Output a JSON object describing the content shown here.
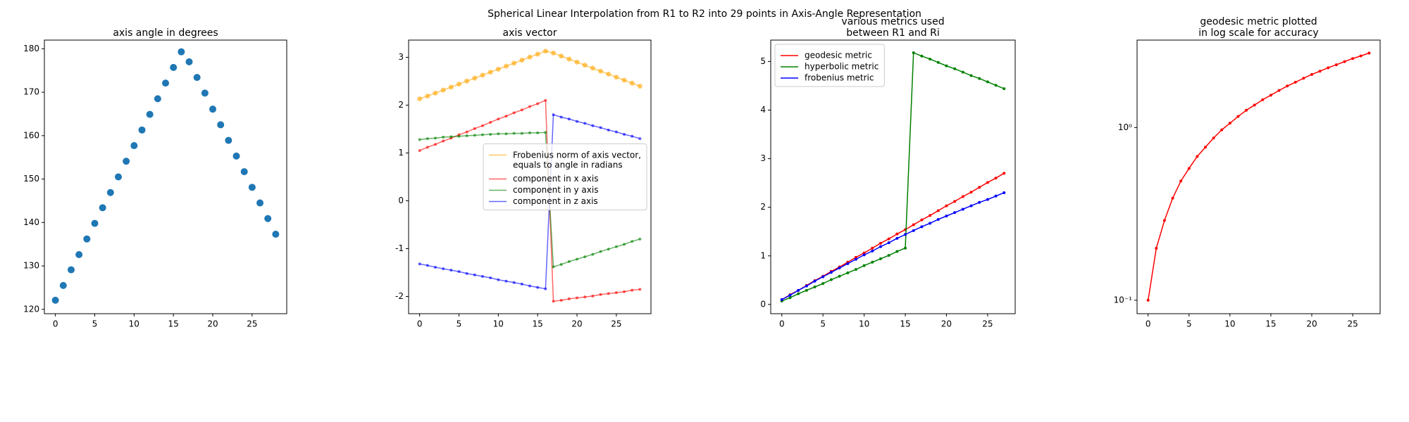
{
  "title": "Spherical Linear Interpolation from R1 to R2 into 29 points in Axis-Angle Representation",
  "chart_data": [
    {
      "type": "scatter",
      "title": "axis angle in degrees",
      "x": [
        0,
        1,
        2,
        3,
        4,
        5,
        6,
        7,
        8,
        9,
        10,
        11,
        12,
        13,
        14,
        15,
        16,
        17,
        18,
        19,
        20,
        21,
        22,
        23,
        24,
        25,
        26,
        27,
        28
      ],
      "series": [
        {
          "color": "#1f77b4",
          "markersize": 5,
          "values": [
            122.1,
            125.5,
            129.1,
            132.6,
            136.2,
            139.8,
            143.4,
            146.9,
            150.5,
            154.1,
            157.7,
            161.3,
            164.9,
            168.5,
            172.1,
            175.7,
            179.3,
            177.0,
            173.4,
            169.8,
            166.1,
            162.5,
            158.9,
            155.3,
            151.7,
            148.1,
            144.5,
            140.9,
            137.3
          ]
        }
      ],
      "xlim": [
        -1.4,
        29.4
      ],
      "xticks": [
        0,
        5,
        10,
        15,
        20,
        25
      ],
      "ylim": [
        119,
        182
      ],
      "yticks": [
        120,
        130,
        140,
        150,
        160,
        170,
        180
      ]
    },
    {
      "type": "line",
      "title": "axis vector",
      "x": [
        0,
        1,
        2,
        3,
        4,
        5,
        6,
        7,
        8,
        9,
        10,
        11,
        12,
        13,
        14,
        15,
        16,
        17,
        18,
        19,
        20,
        21,
        22,
        23,
        24,
        25,
        26,
        27,
        28
      ],
      "series": [
        {
          "name": "Frobenius norm of axis vector,\nequals to angle in radians",
          "color": "orange",
          "alpha": 0.6,
          "markersize": 3.5,
          "values": [
            2.131,
            2.19,
            2.252,
            2.314,
            2.377,
            2.44,
            2.503,
            2.564,
            2.627,
            2.69,
            2.752,
            2.815,
            2.878,
            2.941,
            3.004,
            3.066,
            3.129,
            3.089,
            3.026,
            2.963,
            2.899,
            2.836,
            2.773,
            2.71,
            2.648,
            2.585,
            2.522,
            2.459,
            2.396
          ]
        },
        {
          "name": "component in x axis",
          "color": "red",
          "alpha": 0.6,
          "markersize": 2,
          "values": [
            1.05,
            1.12,
            1.18,
            1.25,
            1.31,
            1.38,
            1.44,
            1.51,
            1.57,
            1.64,
            1.71,
            1.77,
            1.84,
            1.9,
            1.97,
            2.03,
            2.1,
            -2.1,
            -2.08,
            -2.05,
            -2.03,
            -2.01,
            -1.99,
            -1.96,
            -1.94,
            -1.92,
            -1.9,
            -1.87,
            -1.85
          ]
        },
        {
          "name": "component in y axis",
          "color": "green",
          "alpha": 0.6,
          "markersize": 2,
          "values": [
            1.28,
            1.3,
            1.31,
            1.33,
            1.34,
            1.35,
            1.36,
            1.37,
            1.38,
            1.39,
            1.4,
            1.4,
            1.41,
            1.41,
            1.42,
            1.42,
            1.43,
            -1.38,
            -1.33,
            -1.27,
            -1.22,
            -1.17,
            -1.12,
            -1.06,
            -1.01,
            -0.96,
            -0.91,
            -0.85,
            -0.8
          ]
        },
        {
          "name": "component in z axis",
          "color": "blue",
          "alpha": 0.6,
          "markersize": 2,
          "values": [
            -1.32,
            -1.35,
            -1.39,
            -1.42,
            -1.45,
            -1.48,
            -1.52,
            -1.55,
            -1.58,
            -1.61,
            -1.65,
            -1.68,
            -1.71,
            -1.74,
            -1.78,
            -1.81,
            -1.84,
            1.8,
            1.75,
            1.71,
            1.66,
            1.62,
            1.57,
            1.53,
            1.48,
            1.44,
            1.39,
            1.35,
            1.3
          ]
        }
      ],
      "xlim": [
        -1.4,
        29.4
      ],
      "xticks": [
        0,
        5,
        10,
        15,
        20,
        25
      ],
      "ylim": [
        -2.36,
        3.36
      ],
      "yticks": [
        -2,
        -1,
        0,
        1,
        2,
        3
      ],
      "legend": "center right"
    },
    {
      "type": "line",
      "title": "various metrics used\nbetween R1 and Ri",
      "x": [
        0,
        1,
        2,
        3,
        4,
        5,
        6,
        7,
        8,
        9,
        10,
        11,
        12,
        13,
        14,
        15,
        16,
        17,
        18,
        19,
        20,
        21,
        22,
        23,
        24,
        25,
        26,
        27
      ],
      "series": [
        {
          "name": "geodesic metric",
          "color": "red",
          "markersize": 2,
          "values": [
            0.1,
            0.2,
            0.29,
            0.39,
            0.49,
            0.58,
            0.68,
            0.77,
            0.87,
            0.97,
            1.06,
            1.16,
            1.26,
            1.35,
            1.45,
            1.54,
            1.64,
            1.74,
            1.83,
            1.93,
            2.03,
            2.12,
            2.22,
            2.31,
            2.41,
            2.51,
            2.6,
            2.7
          ]
        },
        {
          "name": "hyperbolic metric",
          "color": "green",
          "markersize": 2,
          "values": [
            0.07,
            0.14,
            0.22,
            0.29,
            0.36,
            0.43,
            0.51,
            0.58,
            0.65,
            0.72,
            0.8,
            0.87,
            0.94,
            1.01,
            1.09,
            1.16,
            5.18,
            5.11,
            5.05,
            4.98,
            4.91,
            4.85,
            4.78,
            4.71,
            4.65,
            4.58,
            4.51,
            4.44
          ]
        },
        {
          "name": "frobenius metric",
          "color": "blue",
          "markersize": 2,
          "values": [
            0.1,
            0.19,
            0.29,
            0.38,
            0.48,
            0.57,
            0.66,
            0.75,
            0.84,
            0.93,
            1.02,
            1.1,
            1.19,
            1.27,
            1.36,
            1.44,
            1.52,
            1.6,
            1.67,
            1.75,
            1.82,
            1.89,
            1.96,
            2.03,
            2.1,
            2.16,
            2.23,
            2.3
          ]
        }
      ],
      "xlim": [
        -1.35,
        28.35
      ],
      "xticks": [
        0,
        5,
        10,
        15,
        20,
        25
      ],
      "ylim": [
        -0.19,
        5.44
      ],
      "yticks": [
        0,
        1,
        2,
        3,
        4,
        5
      ],
      "legend": "upper left"
    },
    {
      "type": "line",
      "title": "geodesic metric plotted\nin log scale for accuracy",
      "x": [
        0,
        1,
        2,
        3,
        4,
        5,
        6,
        7,
        8,
        9,
        10,
        11,
        12,
        13,
        14,
        15,
        16,
        17,
        18,
        19,
        20,
        21,
        22,
        23,
        24,
        25,
        26,
        27
      ],
      "series": [
        {
          "color": "red",
          "markersize": 2,
          "values": [
            0.1,
            0.2,
            0.29,
            0.39,
            0.49,
            0.58,
            0.68,
            0.77,
            0.87,
            0.97,
            1.06,
            1.16,
            1.26,
            1.35,
            1.45,
            1.54,
            1.64,
            1.74,
            1.83,
            1.93,
            2.03,
            2.12,
            2.22,
            2.31,
            2.41,
            2.51,
            2.6,
            2.7
          ]
        }
      ],
      "xlim": [
        -1.35,
        28.35
      ],
      "xticks": [
        0,
        5,
        10,
        15,
        20,
        25
      ],
      "yscale": "log",
      "ylim": [
        0.0836,
        3.21
      ],
      "yticks": [
        {
          "value": 0.1,
          "label": "10⁻¹"
        },
        {
          "value": 1,
          "label": "10⁰"
        }
      ]
    }
  ]
}
